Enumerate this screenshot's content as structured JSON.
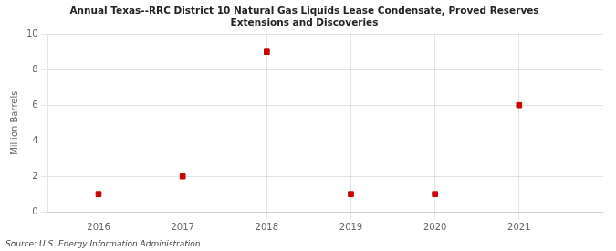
{
  "chart_data": {
    "type": "scatter",
    "title": "Annual Texas--RRC District 10 Natural Gas Liquids Lease Condensate, Proved Reserves\nExtensions and Discoveries",
    "x": [
      2016,
      2017,
      2018,
      2019,
      2020,
      2021
    ],
    "values": [
      1,
      2,
      9,
      1,
      1,
      6
    ],
    "ylabel": "Million Barrels",
    "xlim": [
      2015.4,
      2022.0
    ],
    "xticks": [
      2016,
      2017,
      2018,
      2019,
      2020,
      2021
    ],
    "ylim": [
      0,
      10
    ],
    "yticks": [
      0,
      2,
      4,
      6,
      8,
      10
    ],
    "color": "#cc0000",
    "marker": "square",
    "grid": true,
    "annotations": [
      "Source: U.S. Energy Information Administration"
    ]
  }
}
